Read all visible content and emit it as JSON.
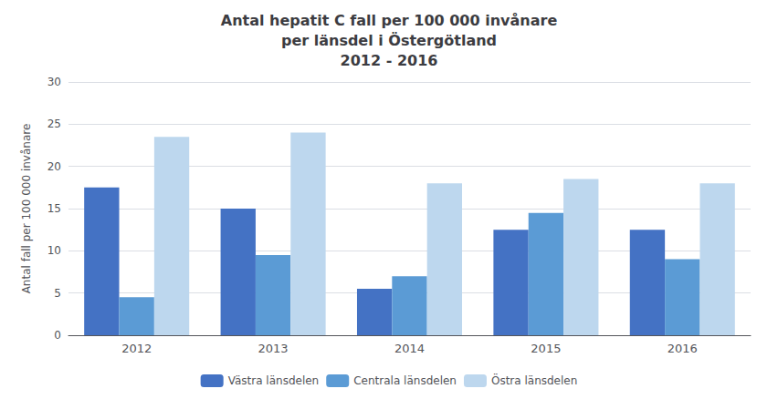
{
  "chart_data": {
    "type": "bar",
    "title": "Antal hepatit C fall per 100 000 invånare\nper länsdel i Östergötland\n2012 - 2016",
    "categories": [
      "2012",
      "2013",
      "2014",
      "2015",
      "2016"
    ],
    "series": [
      {
        "name": "Västra länsdelen",
        "color": "#4472C4",
        "values": [
          17.5,
          15.0,
          5.5,
          12.5,
          12.5
        ]
      },
      {
        "name": "Centrala länsdelen",
        "color": "#5B9BD5",
        "values": [
          4.5,
          9.5,
          7.0,
          14.5,
          9.0
        ]
      },
      {
        "name": "Östra länsdelen",
        "color": "#BDD7EE",
        "values": [
          23.5,
          24.0,
          18.0,
          18.5,
          18.0
        ]
      }
    ],
    "ylabel": "Antal fall per 100 000 invånare",
    "ylim": [
      0,
      30
    ],
    "yticks": [
      0,
      5,
      10,
      15,
      20,
      25,
      30
    ],
    "grid": true,
    "legend": "bottom"
  }
}
